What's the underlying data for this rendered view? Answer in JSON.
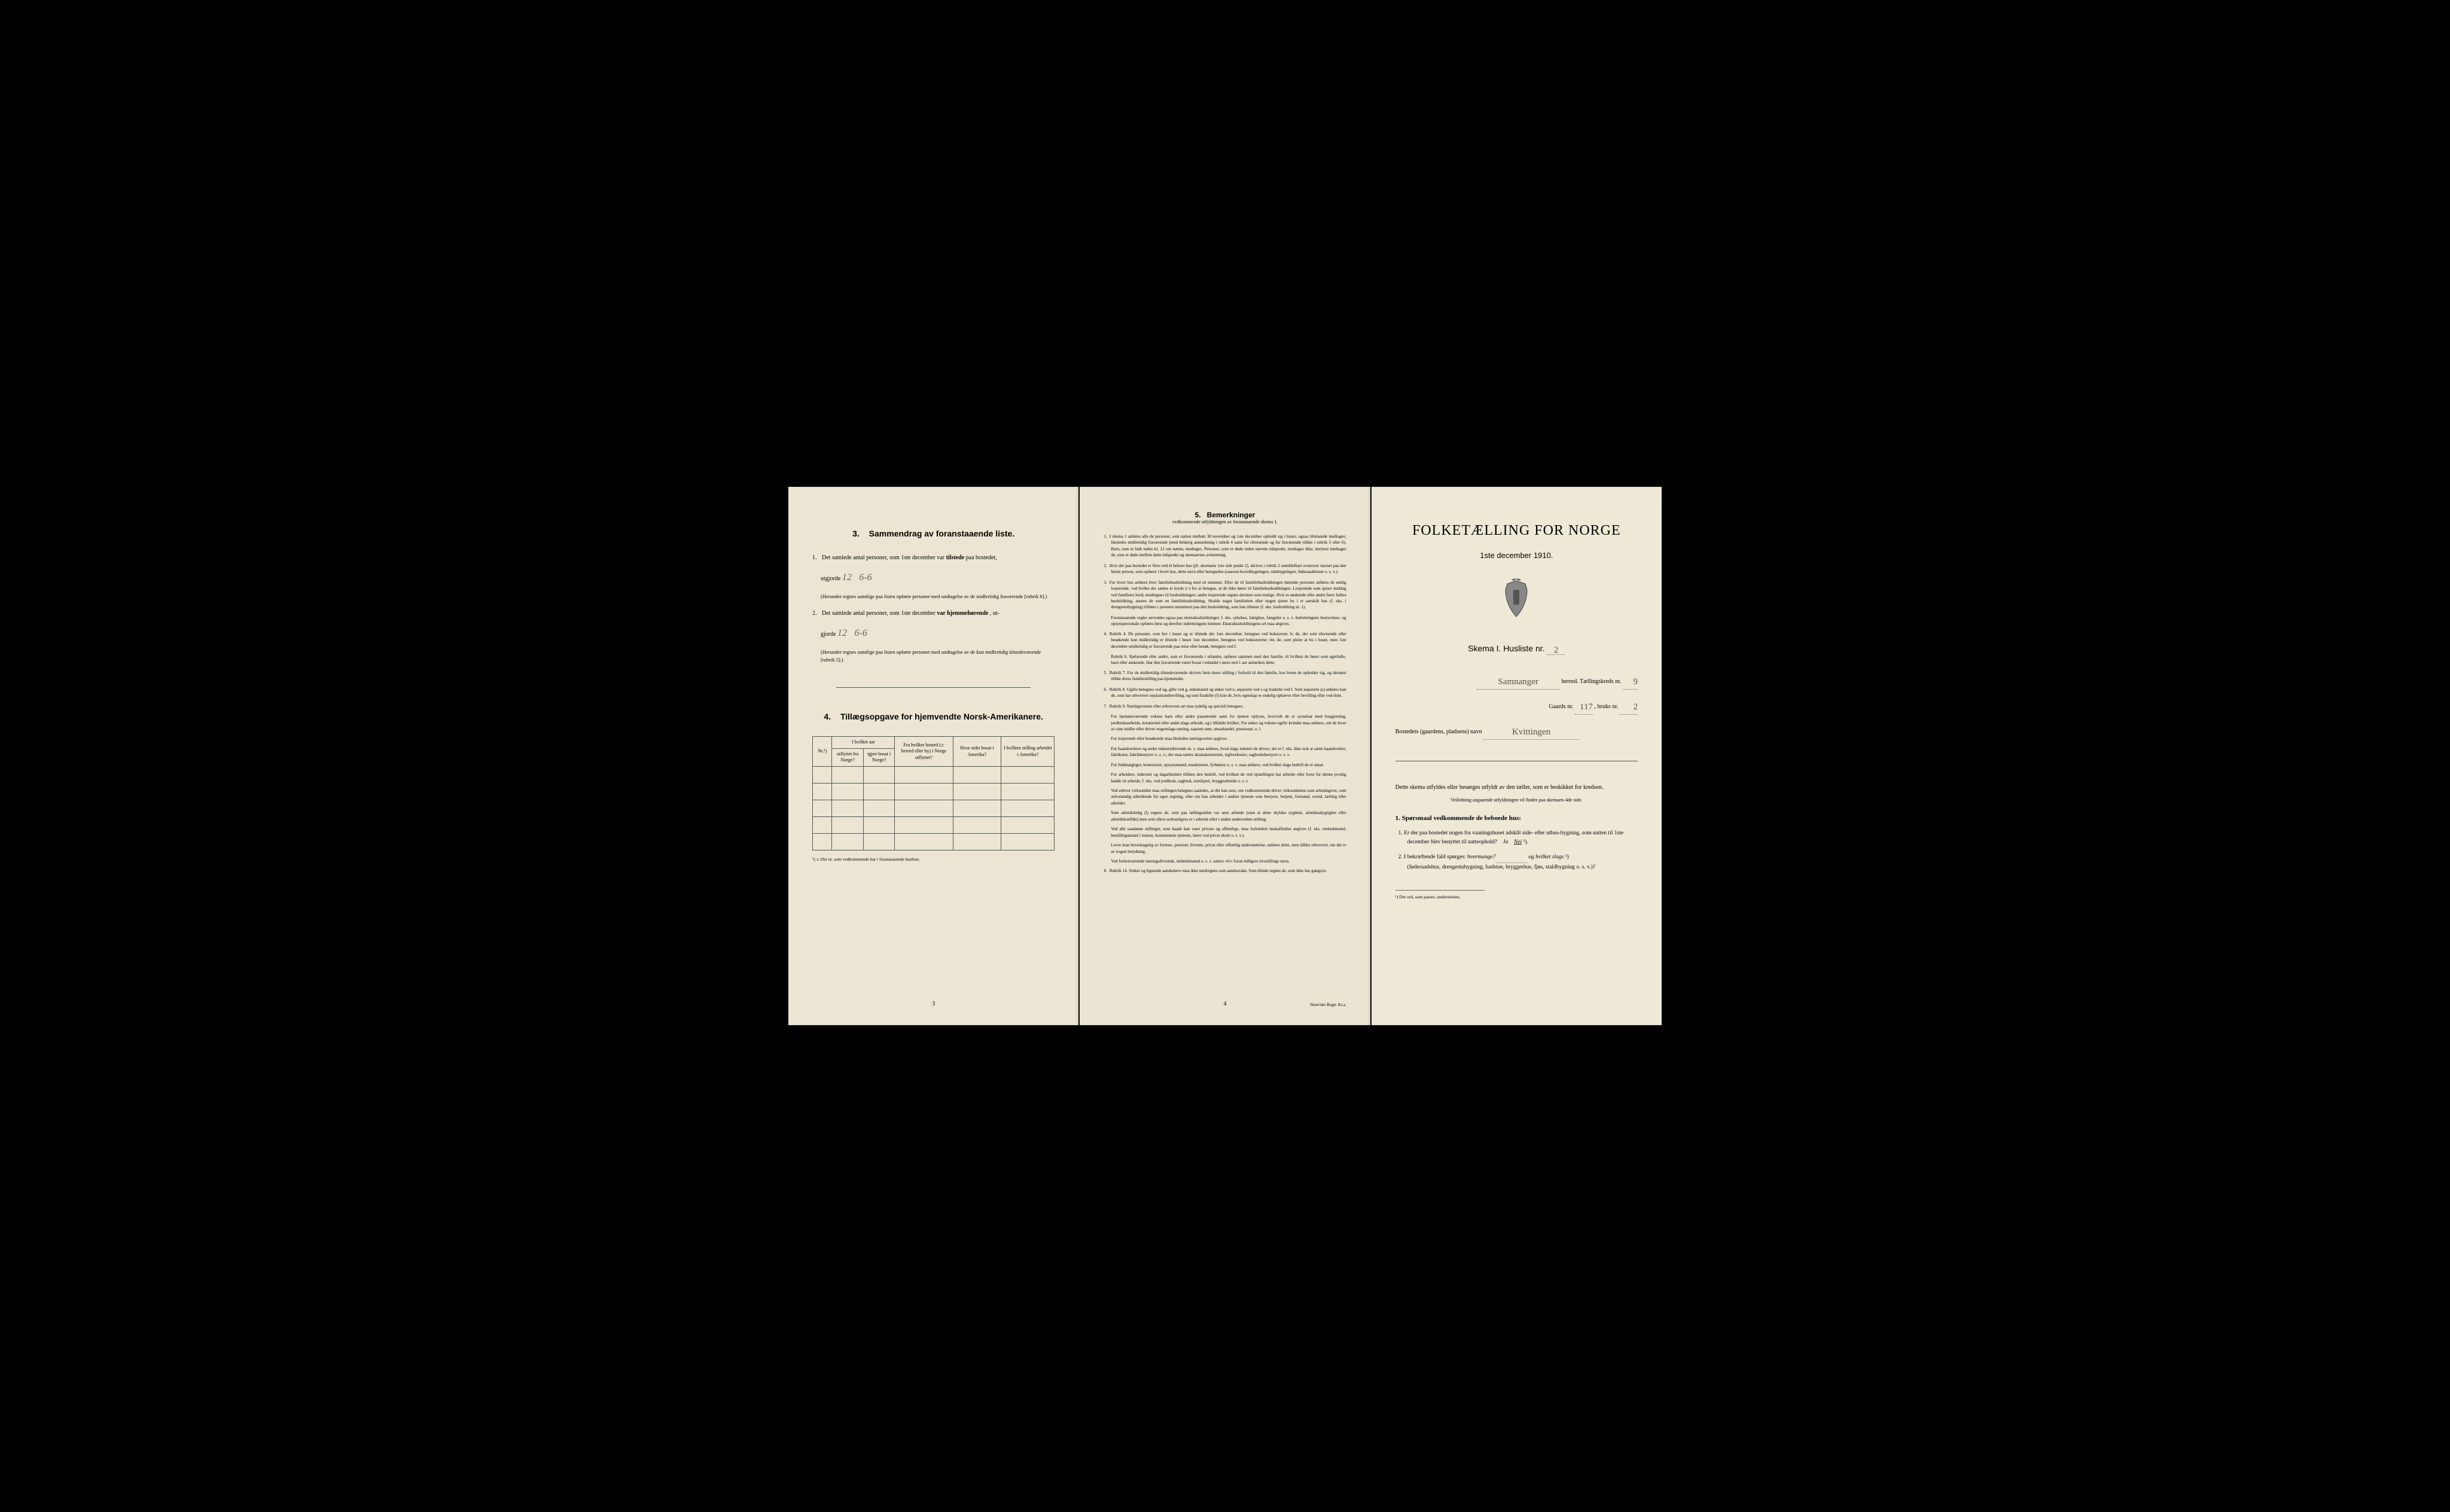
{
  "page1": {
    "section3": {
      "num": "3.",
      "title": "Sammendrag av foranstaaende liste.",
      "item1": {
        "num": "1.",
        "text_a": "Det samlede antal personer, som 1ste december var ",
        "text_b": "tilstede",
        "text_c": " paa bostedet,",
        "utgjorde": "utgjorde",
        "hw1": "12",
        "hw2": "6-6",
        "sub": "(Herunder regnes samtlige paa listen opførte personer med undtagelse av de midlertidig fraværende [rubrik 6].)"
      },
      "item2": {
        "num": "2.",
        "text_a": "Det samlede antal personer, som 1ste december ",
        "text_b": "var hjemmehørende",
        "text_c": ", ut-",
        "gjorde": "gjorde",
        "hw1": "12",
        "hw2": "6-6",
        "sub": "(Herunder regnes samtlige paa listen opførte personer med undtagelse av de kun midlertidig tilstedeværende [rubrik 5].)"
      }
    },
    "section4": {
      "num": "4.",
      "title": "Tillægsopgave for hjemvendte Norsk-Amerikanere.",
      "headers": {
        "col1": "Nr.¹)",
        "col2_top": "I hvilket aar",
        "col2a": "utflyttet fra Norge?",
        "col2b": "igjen bosat i Norge?",
        "col3": "Fra hvilket bosted (ɔ: herred eller by) i Norge utflyttet?",
        "col4": "Hvor sidst bosat i Amerika?",
        "col5": "I hvilken stilling arbeidet i Amerika?"
      },
      "footnote": "¹) ɔ: Det nr. som vedkommende har i foranstaaende husliste."
    },
    "pagenum": "3"
  },
  "page2": {
    "title_num": "5.",
    "title": "Bemerkninger",
    "subtitle": "vedkommende utfyldningen av foranstaaende skema 1.",
    "remarks": [
      {
        "n": "1.",
        "text": "I skema 1 anføres alle de personer, som natten mellem 30 november og 1ste december opholdt sig i huset; ogsaa tilreisende medtages; likeledes midlertidig fraværende (med behørig anmerkning i rubrik 4 samt for tilreisende og for fraværende tillike i rubrik 5 eller 6). Barn, som er født inden kl. 12 om natten, medtages. Personer, som er døde inden nævnte tidspunkt, medtages ikke; derimot medtages de, som er døde mellem dette tidspunkt og skemaernes avhentning."
      },
      {
        "n": "2.",
        "text": "Hvis der paa bostedet er flere end ét beboet hus (jfr. skemaets 1ste side punkt 2), skrives i rubrik 2 umiddelbart ovenover navnet paa den første person, som opføres i hvert hus, dette navn eller betegnelse (saasom hovedbygningen, sidebygningen, føderaadshuset o. s. v.)."
      },
      {
        "n": "3.",
        "text": "For hvert hus anføres hver familiehusholdning med sit nummer. Efter de til familiehusholdningen hørende personer anføres de enslig losjerende, ved hvilke der sættes et kryds (×) for at betegne, at de ikke hører til familiehusholdningen. Losjerende som spiser middag ved familiens bord, medregnes til husholdningen; andre losjerende regnes derimot som enslige. Hvis to søskende eller andre fører fælles husholdning, ansees de som en familiehusholdning. Skulde noget familielem eller nogen tjener bo i et særskilt hus (f. eks. i drengestubygning) tilføies i parentes nummeret paa den husholdning, som han tilhører (f. eks. husholdning nr. 1)."
      },
      {
        "n": "",
        "text": "Foranstaaende regler anvendes ogsaa paa ekstrahusholdninger, f. eks. sykehus, fattighus, fængsler o. s. v. Indretningens bestyrelses- og opsynspersonale opføres først og derefter indretningens lemmer. Ekstrahusholdningens art maa angives."
      },
      {
        "n": "4.",
        "text": "Rubrik 4. De personer, som bor i huset og er tilstede der 1ste december, betegnes ved bokstaven: b; de, der som tilreisende eller besøkende kun midlertidig er tilstede i huset 1ste december, betegnes ved bokstaverne: mt; de, som pleier at bo i huset, men 1ste december midlertidig er fraværende paa reise eller besøk, betegnes ved f."
      },
      {
        "n": "",
        "text": "Rubrik 6. Sjøfarende eller andre, som er fraværende i utlandet, opføres sammen med den familie, til hvilken de hører som egtefælle, barn eller søskende. Har den fraværende været bosat i utlandet i mere end 1 aar anmerkes dette."
      },
      {
        "n": "5.",
        "text": "Rubrik 7. For de midlertidig tilstedeværende skrives først deres stilling i forhold til den familie, hos hvem de opholder sig, og dernæst tillike deres familiestilling paa hjemstedet."
      },
      {
        "n": "6.",
        "text": "Rubrik 8. Ugifte betegnes ved ug, gifte ved g, enkemænd og enker ved e, separerte ved s og fraskilte ved f. Som separerte (s) anføres kun de, som har erhvervet separationsbevilling, og som fraskilte (f) kun de, hvis egteskap er endelig ophævet efter bevilling eller ved dom."
      },
      {
        "n": "7.",
        "text": "Rubrik 9. Næringsveiens eller erhvervets art maa tydelig og specielt betegnes."
      },
      {
        "n": "",
        "text": "For hjemmeværende voksne barn eller andre paarørende samt for tjenere oplyses, hvorvidt de er sysselsat med husgjerning, jordbruksarbeide, kreaturstel eller andet slags arbeide, og i tilfælde hvilket. For enker og voksne ugifte kvinder maa anføres, om de lever av sine midler eller driver nogenslags næring, saasom søm, smaahandel, pensionat, o. l."
      },
      {
        "n": "",
        "text": "For losjerende eller besøkende maa likeledes næringsveien opgives."
      },
      {
        "n": "",
        "text": "For haandverkere og andre industridrivende m. v. maa anføres, hvad slags industri de driver; det er f. eks. ikke nok at sætte haandverker, fabrikeier, fabrikbestyrer o. s. v.; der maa sættes skomakermester, teglverkseier, sagbruksbestyrer o. s. v."
      },
      {
        "n": "",
        "text": "For fuldmægtiger, kontorister, opsynsmænd, maskinister, fyrbøtere o. s. v. maa anføres, ved hvilket slags bedrift de er ansat."
      },
      {
        "n": "",
        "text": "For arbeidere, inderster og dagarbeidere tilføies den bedrift, ved hvilken de ved optællingen har arbeide eller forut for denne jevnlig hadde sit arbeide, f. eks. ved jordbruk, sagbruk, træsliperi, bryggearbeide o. s. v."
      },
      {
        "n": "",
        "text": "Ved enhver virksomhet maa stillingen betegnes saaledes, at det kan sees, om vedkommende driver virksomheten som arbeidsgiver, som selvstændig arbeidende for egen regning, eller om han arbeider i andres tjeneste som bestyrer, betjent, formand, svend, lærling eller arbeider."
      },
      {
        "n": "",
        "text": "Som arbeidsledig (l) regnes de, som paa tællingstiden var uten arbeide (uten at dette skyldes sygdom, arbeidsudygtighet eller arbeidskonflikt) men som ellers sedvanligvis er i arbeide eller i anden underordnet stilling."
      },
      {
        "n": "",
        "text": "Ved alle saadanne stillinger, som baade kan være private og offentlige, maa forholdets beskaffenhet angives (f. eks. embedsmand, bestillingsmand i statens, kommunens tjeneste, lærer ved privat skole o. s. v.)."
      },
      {
        "n": "",
        "text": "Lever man hovedsagelig av formue, pension, livrente, privat eller offentlig understøttelse, anføres dette, men tillike erhvervet, om det er av nogen betydning."
      },
      {
        "n": "",
        "text": "Ved forhenværende næringsdrivende, embedsmænd o. s. v. sættes «fv» foran tidligere livsstillings navn."
      },
      {
        "n": "8.",
        "text": "Rubrik 14. Sinker og lignende aandssløve maa ikke medregnes som aandssvake. Som blinde regnes de, som ikke har gangsyn."
      }
    ],
    "pagenum": "4",
    "printer": "Steen'ske Bogtr. Kr.a."
  },
  "page3": {
    "title": "FOLKETÆLLING FOR NORGE",
    "date": "1ste december 1910.",
    "schema": "Skema I.   Husliste nr.",
    "husliste_nr": "2",
    "herred_hw": "Samnanger",
    "herred_label": "herred.  Tællingskreds nr.",
    "kreds_nr": "9",
    "gaards_label": "Gaards nr.",
    "gaards_nr": "117",
    "bruks_label": ", bruks nr.",
    "bruks_nr": "2",
    "bosted_label": "Bostedets (gaardens, pladsens) navn",
    "bosted_hw": "Kvittingen",
    "instruction1": "Dette skema utfyldes eller besørges utfyldt av den tæller, som er beskikket for kredsen.",
    "instruction2": "Veiledning angaaende utfyldningen vil findes paa skemaets 4de side.",
    "q_title": "1. Spørsmaal vedkommende de beboede hus:",
    "q1": {
      "num": "1.",
      "text": "Er der paa bostedet nogen fra vaaningshuset adskilt side- eller uthus-bygning, som natten til 1ste december blev benyttet til natteophold?",
      "ja": "Ja",
      "nei": "Nei",
      "sup": "¹)."
    },
    "q2": {
      "num": "2.",
      "text_a": "I bekræftende fald spørges: ",
      "text_b": "hvormange?",
      "text_c": "og hvilket slags",
      "text_d": "¹)",
      "text_e": "(føderaadshus, drengestubygning, badstue, bryggerhus, fjøs, staldbygning o. s. v.)?"
    },
    "footnote": "¹) Det ord, som passer, understrekes."
  },
  "colors": {
    "bg": "#000000",
    "paper1": "#ece5d3",
    "paper2": "#ebe4d2",
    "paper3": "#eee8d7",
    "text": "#2a2a2a",
    "handwriting": "#6a6050"
  }
}
